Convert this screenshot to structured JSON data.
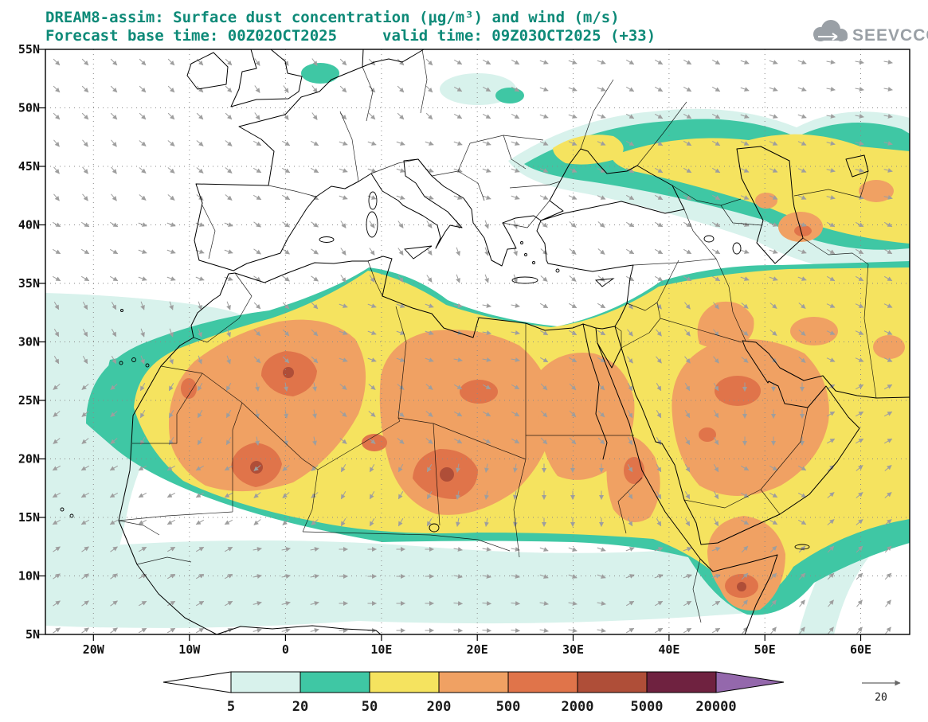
{
  "header": {
    "title_line1": "DREAM8-assim: Surface dust concentration (μg/m³) and wind (m/s)",
    "forecast_label": "Forecast base time: 00Z02OCT2025",
    "valid_label": "valid time: 09Z03OCT2025 (+33)",
    "title_color": "#0e8a78",
    "logo_text": "SEEVCCC",
    "logo_color": "#9aa0a6"
  },
  "chart_data": {
    "type": "heatmap",
    "subtype": "filled-contour-geographic-map-with-wind-vectors",
    "model": "DREAM8-assim",
    "variable": "Surface dust concentration",
    "units": "μg/m³",
    "wind_units": "m/s",
    "forecast_base_time": "00Z02OCT2025",
    "valid_time": "09Z03OCT2025",
    "forecast_hour": "+33",
    "lon_range_deg": [
      -25,
      65
    ],
    "lat_range_deg": [
      5,
      55
    ],
    "grid_style": "dotted",
    "legend_position": "bottom",
    "xticks": [
      "20W",
      "10W",
      "0",
      "10E",
      "20E",
      "30E",
      "40E",
      "50E",
      "60E"
    ],
    "yticks": [
      "55N",
      "50N",
      "45N",
      "40N",
      "35N",
      "30N",
      "25N",
      "20N",
      "15N",
      "10N",
      "5N"
    ],
    "colorbar": {
      "levels": [
        5,
        20,
        50,
        200,
        500,
        2000,
        5000,
        20000
      ],
      "band_names": [
        "lt5",
        "5-20",
        "20-50",
        "50-200",
        "200-500",
        "500-2000",
        "2000-5000",
        "5000-20000",
        "gt20000"
      ],
      "colors": [
        "#ffffff",
        "#d8f2ec",
        "#3fc7a4",
        "#f5e35f",
        "#f0a163",
        "#e0744a",
        "#af4e38",
        "#6f2240",
        "#9468ac"
      ],
      "label_color": "#1a1a1a"
    },
    "wind": {
      "reference_value": "20",
      "arrow_color": "#9e9e9e",
      "lon_centers": [
        -22,
        -10,
        0,
        10,
        20,
        30,
        40,
        50,
        60
      ],
      "lat_centers": [
        52,
        45,
        38,
        31,
        24,
        17,
        10,
        6
      ],
      "angles_deg_screen": [
        [
          45,
          45,
          55,
          45,
          30,
          20,
          30,
          20,
          10
        ],
        [
          50,
          40,
          30,
          20,
          20,
          25,
          30,
          25,
          15
        ],
        [
          30,
          20,
          35,
          55,
          70,
          40,
          30,
          20,
          30
        ],
        [
          60,
          70,
          45,
          20,
          10,
          30,
          50,
          40,
          25
        ],
        [
          140,
          120,
          80,
          40,
          30,
          45,
          60,
          90,
          -30
        ],
        [
          150,
          150,
          140,
          120,
          100,
          90,
          60,
          30,
          -40
        ],
        [
          -35,
          -30,
          -10,
          0,
          10,
          20,
          -20,
          -45,
          -45
        ],
        [
          -35,
          -30,
          -15,
          0,
          5,
          10,
          -30,
          -50,
          -50
        ]
      ]
    },
    "dust_maxima": [
      {
        "lon": 0,
        "lat": 27.5,
        "band": "2000-5000"
      },
      {
        "lon": -3,
        "lat": 19.5,
        "band": "2000-5000"
      },
      {
        "lon": 17,
        "lat": 18.5,
        "band": "2000-5000"
      },
      {
        "lon": 47,
        "lat": 9,
        "band": "2000-5000"
      },
      {
        "lon": 20,
        "lat": 26,
        "band": "500-2000"
      },
      {
        "lon": 37,
        "lat": 19,
        "band": "500-2000"
      },
      {
        "lon": 47,
        "lat": 26,
        "band": "500-2000"
      }
    ]
  },
  "wind_ref": {
    "label": "20"
  }
}
